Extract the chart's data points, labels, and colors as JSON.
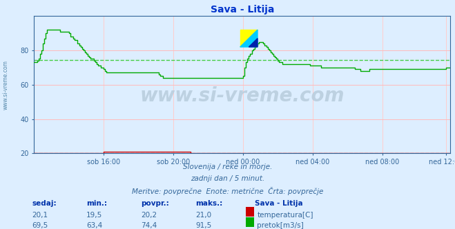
{
  "title": "Sava - Litija",
  "background_color": "#ddeeff",
  "plot_bg_color": "#ddeeff",
  "xlim": [
    0,
    287
  ],
  "ylim": [
    20,
    100
  ],
  "yticks": [
    20,
    40,
    60,
    80
  ],
  "xtick_labels": [
    "sob 16:00",
    "sob 20:00",
    "ned 00:00",
    "ned 04:00",
    "ned 08:00",
    "ned 12:00"
  ],
  "xtick_positions": [
    48,
    96,
    144,
    192,
    240,
    284
  ],
  "avg_temp": 20.2,
  "avg_flow": 74.4,
  "temp_color": "#cc0000",
  "flow_color": "#00aa00",
  "avg_color_dashed_temp": "#ff8888",
  "avg_color_dashed_flow": "#44cc44",
  "grid_color_h": "#ffbbbb",
  "grid_color_v": "#ffcccc",
  "watermark_text": "www.si-vreme.com",
  "footer_line1": "Slovenija / reke in morje.",
  "footer_line2": "zadnji dan / 5 minut.",
  "footer_line3": "Meritve: povprečne  Enote: metrične  Črta: povprečje",
  "table_headers": [
    "sedaj:",
    "min.:",
    "povpr.:",
    "maks.:"
  ],
  "table_row1": [
    "20,1",
    "19,5",
    "20,2",
    "21,0"
  ],
  "table_row2": [
    "69,5",
    "63,4",
    "74,4",
    "91,5"
  ],
  "label_temp": "temperatura[C]",
  "label_flow": "pretok[m3/s]",
  "station_label": "Sava - Litija",
  "left_label": "www.si-vreme.com",
  "temp_data": [
    20,
    20,
    20,
    20,
    20,
    20,
    20,
    20,
    20,
    20,
    20,
    20,
    20,
    20,
    20,
    20,
    20,
    20,
    20,
    20,
    20,
    20,
    20,
    20,
    20,
    20,
    20,
    20,
    20,
    20,
    20,
    20,
    20,
    20,
    20,
    20,
    20,
    20,
    20,
    20,
    20,
    20,
    20,
    20,
    20,
    20,
    20,
    20,
    21,
    21,
    21,
    21,
    21,
    21,
    21,
    21,
    21,
    21,
    21,
    21,
    21,
    21,
    21,
    21,
    21,
    21,
    21,
    21,
    21,
    21,
    21,
    21,
    21,
    21,
    21,
    21,
    21,
    21,
    21,
    21,
    21,
    21,
    21,
    21,
    21,
    21,
    21,
    21,
    21,
    21,
    21,
    21,
    21,
    21,
    21,
    21,
    21,
    21,
    21,
    21,
    21,
    21,
    21,
    21,
    21,
    21,
    21,
    21,
    20,
    20,
    20,
    20,
    20,
    20,
    20,
    20,
    20,
    20,
    20,
    20,
    20,
    20,
    20,
    20,
    20,
    20,
    20,
    20,
    20,
    20,
    20,
    20,
    20,
    20,
    20,
    20,
    20,
    20,
    20,
    20,
    20,
    20,
    20,
    20,
    20,
    20,
    20,
    20,
    20,
    20,
    20,
    20,
    20,
    20,
    20,
    20,
    20,
    20,
    20,
    20,
    20,
    20,
    20,
    20,
    20,
    20,
    20,
    20,
    20,
    20,
    20,
    20,
    20,
    20,
    20,
    20,
    20,
    20,
    20,
    20,
    20,
    20,
    20,
    20,
    20,
    20,
    20,
    20,
    20,
    20,
    20,
    20,
    20,
    20,
    20,
    20,
    20,
    20,
    20,
    20,
    20,
    20,
    20,
    20,
    20,
    20,
    20,
    20,
    20,
    20,
    20,
    20,
    20,
    20,
    20,
    20,
    20,
    20,
    20,
    20,
    20,
    20,
    20,
    20,
    20,
    20,
    20,
    20,
    20,
    20,
    20,
    20,
    20,
    20,
    20,
    20,
    20,
    20,
    20,
    20,
    20,
    20,
    20,
    20,
    20,
    20,
    20,
    20,
    20,
    20,
    20,
    20,
    20,
    20,
    20,
    20,
    20,
    20,
    20,
    20,
    20,
    20,
    20,
    20,
    20,
    20,
    20,
    20,
    20,
    20,
    20,
    20,
    20,
    20,
    20,
    20,
    20,
    20,
    20,
    20,
    20,
    20,
    20,
    20,
    20,
    20,
    20,
    20
  ],
  "flow_data": [
    73,
    73,
    74,
    75,
    78,
    80,
    84,
    87,
    90,
    92,
    92,
    92,
    92,
    92,
    92,
    92,
    92,
    92,
    91,
    91,
    91,
    91,
    91,
    91,
    90,
    88,
    88,
    87,
    86,
    86,
    84,
    83,
    82,
    81,
    80,
    79,
    78,
    77,
    76,
    75,
    75,
    74,
    73,
    72,
    71,
    71,
    70,
    70,
    69,
    68,
    67,
    67,
    67,
    67,
    67,
    67,
    67,
    67,
    67,
    67,
    67,
    67,
    67,
    67,
    67,
    67,
    67,
    67,
    67,
    67,
    67,
    67,
    67,
    67,
    67,
    67,
    67,
    67,
    67,
    67,
    67,
    67,
    67,
    67,
    67,
    67,
    66,
    65,
    65,
    64,
    64,
    64,
    64,
    64,
    64,
    64,
    64,
    64,
    64,
    64,
    64,
    64,
    64,
    64,
    64,
    64,
    64,
    64,
    64,
    64,
    64,
    64,
    64,
    64,
    64,
    64,
    64,
    64,
    64,
    64,
    64,
    64,
    64,
    64,
    64,
    64,
    64,
    64,
    64,
    64,
    64,
    64,
    64,
    64,
    64,
    64,
    64,
    64,
    64,
    64,
    64,
    64,
    64,
    64,
    65,
    70,
    73,
    75,
    77,
    78,
    80,
    81,
    82,
    83,
    84,
    85,
    85,
    85,
    84,
    83,
    82,
    81,
    80,
    79,
    78,
    77,
    76,
    75,
    74,
    73,
    73,
    72,
    72,
    72,
    72,
    72,
    72,
    72,
    72,
    72,
    72,
    72,
    72,
    72,
    72,
    72,
    72,
    72,
    72,
    72,
    71,
    71,
    71,
    71,
    71,
    71,
    71,
    71,
    70,
    70,
    70,
    70,
    70,
    70,
    70,
    70,
    70,
    70,
    70,
    70,
    70,
    70,
    70,
    70,
    70,
    70,
    70,
    70,
    70,
    70,
    70,
    69,
    69,
    69,
    69,
    68,
    68,
    68,
    68,
    68,
    68,
    69,
    69,
    69,
    69,
    69,
    69,
    69,
    69,
    69,
    69,
    69,
    69,
    69,
    69,
    69,
    69,
    69,
    69,
    69,
    69,
    69,
    69,
    69,
    69,
    69,
    69,
    69,
    69,
    69,
    69,
    69,
    69,
    69,
    69,
    69,
    69,
    69,
    69,
    69,
    69,
    69,
    69,
    69,
    69,
    69,
    69,
    69,
    69,
    69,
    69,
    69,
    69,
    69,
    70,
    70,
    70,
    70
  ]
}
